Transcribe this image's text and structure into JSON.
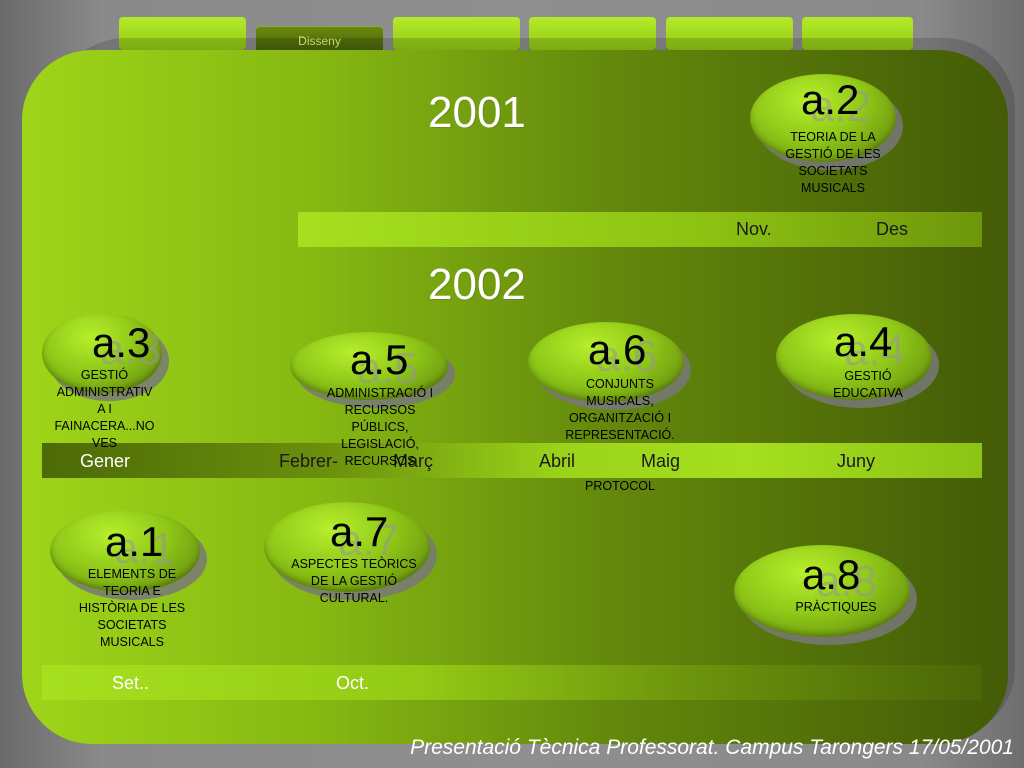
{
  "tabs": [
    {
      "label": ""
    },
    {
      "label": "Disseny",
      "active": true
    },
    {
      "label": ""
    },
    {
      "label": ""
    },
    {
      "label": ""
    },
    {
      "label": ""
    }
  ],
  "years": {
    "first": "2001",
    "second": "2002"
  },
  "timelines": {
    "top": {
      "months": [
        "Nov.",
        "Des"
      ]
    },
    "middle": {
      "months": [
        "Gener",
        "Febrer-",
        "Març",
        "Abril",
        "Maig",
        "Juny"
      ]
    },
    "bottom": {
      "months": [
        "Set..",
        "Oct."
      ]
    }
  },
  "modules": {
    "a2": {
      "code": "a.2",
      "lines": [
        "TEORIA DE LA",
        "GESTIÓ DE LES",
        "SOCIETATS",
        "MUSICALS"
      ]
    },
    "a3": {
      "code": "a.3",
      "lines": [
        "GESTIÓ",
        "ADMINISTRATIV",
        "A I",
        "FAINACERA...NO",
        "VES"
      ]
    },
    "a5": {
      "code": "a.5",
      "lines": [
        "ADMINISTRACIÓ I",
        "RECURSOS",
        "PÚBLICS,",
        "LEGISLACIÓ,",
        "RECURSOS"
      ]
    },
    "a6": {
      "code": "a.6",
      "lines": [
        "CONJUNTS",
        "MUSICALS,",
        "ORGANITZACIÓ I",
        "REPRESENTACIÓ.",
        "PROTOCOL"
      ]
    },
    "a4": {
      "code": "a.4",
      "lines": [
        "GESTIÓ",
        "EDUCATIVA"
      ]
    },
    "a1": {
      "code": "a.1",
      "lines": [
        "ELEMENTS DE",
        "TEORIA E",
        "HISTÒRIA DE LES",
        "SOCIETATS",
        "MUSICALS"
      ]
    },
    "a7": {
      "code": "a.7",
      "lines": [
        "ASPECTES TEÒRICS",
        "DE LA GESTIÓ",
        "CULTURAL."
      ]
    },
    "a8": {
      "code": "a.8",
      "lines": [
        "PRÀCTIQUES"
      ]
    }
  },
  "footer": "Presentació Tècnica Professorat. Campus Tarongers 17/05/2001",
  "colors": {
    "accent": "#9fd519",
    "dark_accent": "#435b06",
    "active_tab_text": "#eaff78"
  }
}
